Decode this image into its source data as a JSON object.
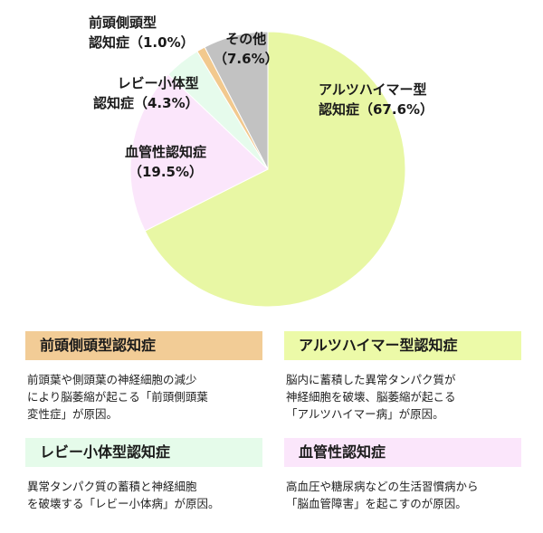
{
  "chart_data": {
    "type": "pie",
    "slices": [
      {
        "name": "アルツハイマー型認知症",
        "value": 67.6,
        "color": "#e8f7a4"
      },
      {
        "name": "血管性認知症",
        "value": 19.5,
        "color": "#fbe6fb"
      },
      {
        "name": "レビー小体型認知症",
        "value": 4.3,
        "color": "#e6fbec"
      },
      {
        "name": "前頭側頭型認知症",
        "value": 1.0,
        "color": "#f2c98e"
      },
      {
        "name": "その他",
        "value": 7.6,
        "color": "#c2c2c2"
      }
    ]
  },
  "labels": {
    "alz": [
      "アルツハイマー型",
      "認知症（67.6%）"
    ],
    "vas": [
      "血管性認知症",
      "（19.5%）"
    ],
    "lewy": [
      "レビー小体型",
      "認知症（4.3%）"
    ],
    "ftd": [
      "前頭側頭型",
      "認知症（1.0%）"
    ],
    "other": [
      "その他",
      "（7.6%）"
    ]
  },
  "cards": {
    "ftd": {
      "title": "前頭側頭型認知症",
      "color": "#f2cc96",
      "lines": [
        "前頭葉や側頭葉の神経細胞の減少",
        "により脳萎縮が起こる「前頭側頭葉",
        "変性症」が原因。"
      ]
    },
    "alz": {
      "title": "アルツハイマー型認知症",
      "color": "#ecfaa8",
      "lines": [
        "脳内に蓄積した異常タンパク質が",
        "神経細胞を破壊、脳萎縮が起こる",
        "「アルツハイマー病」が原因。"
      ]
    },
    "lewy": {
      "title": "レビー小体型認知症",
      "color": "#e5fbea",
      "lines": [
        "異常タンパク質の蓄積と神経細胞",
        "を破壊する「レビー小体病」が原因。"
      ]
    },
    "vas": {
      "title": "血管性認知症",
      "color": "#fbe6fb",
      "lines": [
        "高血圧や糖尿病などの生活習慣病から",
        "「脳血管障害」を起こすのが原因。"
      ]
    }
  }
}
